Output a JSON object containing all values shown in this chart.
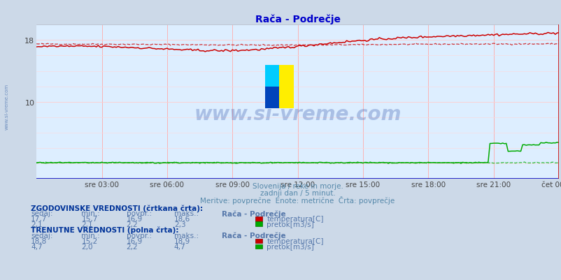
{
  "title": "Rača - Podrečje",
  "bg_color": "#ccd9e8",
  "plot_bg_color": "#ddeeff",
  "title_color": "#0000cc",
  "xlim": [
    0,
    288
  ],
  "ylim": [
    0,
    20
  ],
  "ytick_positions": [
    10,
    18
  ],
  "ytick_labels": [
    "10",
    "18"
  ],
  "x_tick_positions": [
    36,
    72,
    108,
    144,
    180,
    216,
    252,
    288
  ],
  "x_tick_labels": [
    "sre 03:00",
    "sre 06:00",
    "sre 09:00",
    "sre 12:00",
    "sre 15:00",
    "sre 18:00",
    "sre 21:00",
    "čet 00:00"
  ],
  "subtitle1": "Slovenija / reke in morje.",
  "subtitle2": "zadnji dan / 5 minut.",
  "subtitle3": "Meritve: povprečne  Enote: metrične  Črta: povprečje",
  "watermark": "www.si-vreme.com",
  "temp_color": "#cc0000",
  "flow_color": "#00aa00",
  "sidebar_text": "www.si-vreme.com",
  "sidebar_color": "#6688bb",
  "txt_bold_color": "#003399",
  "txt_val_color": "#5577aa",
  "hist_header": "ZGODOVINSKE VREDNOSTI (črtkana črta):",
  "col_headers": [
    "sedaj:",
    "min.:",
    "povpr.:",
    "maks.:",
    "Rača - Podrečje"
  ],
  "hist_temp": [
    "17,7",
    "15,7",
    "16,9",
    "18,6",
    "temperatura[C]"
  ],
  "hist_flow": [
    "2,1",
    "2,1",
    "2,2",
    "2,3",
    "pretok[m3/s]"
  ],
  "curr_header": "TRENUTNE VREDNOSTI (polna črta):",
  "curr_temp": [
    "18,8",
    "15,2",
    "16,9",
    "18,9",
    "temperatura[C]"
  ],
  "curr_flow": [
    "4,7",
    "2,0",
    "2,2",
    "4,7",
    "pretok[m3/s]"
  ]
}
